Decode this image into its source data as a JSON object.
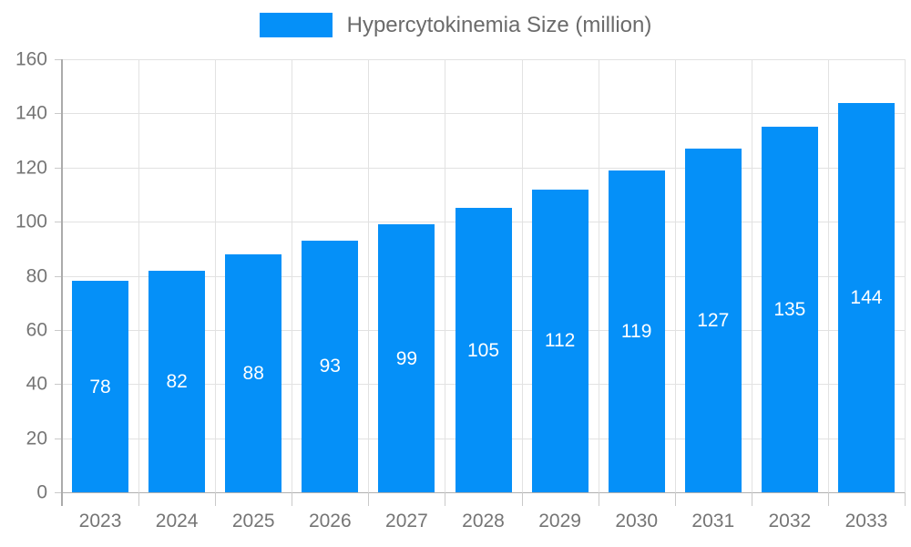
{
  "chart_data": {
    "type": "bar",
    "title": "",
    "categories": [
      "2023",
      "2024",
      "2025",
      "2026",
      "2027",
      "2028",
      "2029",
      "2030",
      "2031",
      "2032",
      "2033"
    ],
    "series": [
      {
        "name": "Hypercytokinemia Size (million)",
        "values": [
          78,
          82,
          88,
          93,
          99,
          105,
          112,
          119,
          127,
          135,
          144
        ]
      }
    ],
    "xlabel": "",
    "ylabel": "",
    "ylim": [
      0,
      160
    ],
    "ytick_step": 20,
    "ytick_labels": [
      "0",
      "20",
      "40",
      "60",
      "80",
      "100",
      "120",
      "140",
      "160"
    ],
    "grid": "on",
    "legend_position": "top-center",
    "value_labels": "inside-center",
    "colors": {
      "bar": "#0590F8",
      "value_label": "#ffffff",
      "axis_text": "#757575",
      "legend_text": "#6b6b6b",
      "grid_line": "#e2e2e2",
      "axis_line": "#ababab",
      "baseline": "#b0b0b0",
      "background": "#ffffff"
    }
  }
}
